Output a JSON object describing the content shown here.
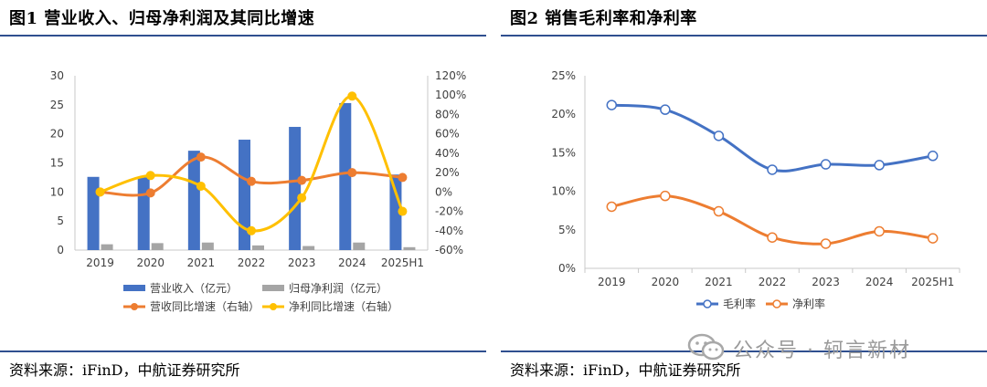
{
  "left": {
    "title": "图1  营业收入、归母净利润及其同比增速",
    "source": "资料来源：iFinD，中航证券研究所"
  },
  "right": {
    "title": "图2  销售毛利率和净利率",
    "source": "资料来源：iFinD，中航证券研究所"
  },
  "watermark": {
    "text": "公众号 · 轲言新材",
    "icon": "wechat-icon"
  },
  "colors": {
    "rule": "#2f4f8f",
    "revenue_bar": "#4472c4",
    "profit_bar": "#a5a5a5",
    "revenue_growth": "#ed7d31",
    "profit_growth": "#ffc000",
    "gross_margin": "#4472c4",
    "net_margin": "#ed7d31"
  },
  "chart_data": [
    {
      "type": "bar",
      "categories": [
        "2019",
        "2020",
        "2021",
        "2022",
        "2023",
        "2024",
        "2025H1"
      ],
      "ylim": [
        0,
        30
      ],
      "yticks": [
        "0",
        "5",
        "10",
        "15",
        "20",
        "25",
        "30"
      ],
      "y2lim": [
        -60,
        120
      ],
      "y2ticks": [
        "-60%",
        "-40%",
        "-20%",
        "0%",
        "20%",
        "40%",
        "60%",
        "80%",
        "100%",
        "120%"
      ],
      "series": [
        {
          "name": "营业收入（亿元）",
          "kind": "bar",
          "axis": "left",
          "values": [
            12.6,
            12.5,
            17.1,
            19.0,
            21.2,
            25.3,
            13.0
          ]
        },
        {
          "name": "归母净利润（亿元）",
          "kind": "bar",
          "axis": "left",
          "values": [
            1.0,
            1.2,
            1.3,
            0.8,
            0.7,
            1.3,
            0.5
          ]
        },
        {
          "name": "营收同比增速（右轴）",
          "kind": "line",
          "axis": "right",
          "values": [
            0,
            -1,
            36,
            11,
            12,
            20,
            15
          ]
        },
        {
          "name": "净利同比增速（右轴）",
          "kind": "line",
          "axis": "right",
          "values": [
            0,
            17,
            6,
            -40,
            -6,
            99,
            -20
          ]
        }
      ],
      "legend_position": "bottom"
    },
    {
      "type": "line",
      "categories": [
        "2019",
        "2020",
        "2021",
        "2022",
        "2023",
        "2024",
        "2025H1"
      ],
      "ylim": [
        0,
        25
      ],
      "yticks": [
        "0%",
        "5%",
        "10%",
        "15%",
        "20%",
        "25%"
      ],
      "series": [
        {
          "name": "毛利率",
          "values": [
            21.2,
            20.6,
            17.2,
            12.8,
            13.5,
            13.4,
            14.6
          ]
        },
        {
          "name": "净利率",
          "values": [
            8.0,
            9.4,
            7.4,
            4.0,
            3.2,
            4.8,
            3.9
          ]
        }
      ],
      "legend_position": "bottom"
    }
  ]
}
